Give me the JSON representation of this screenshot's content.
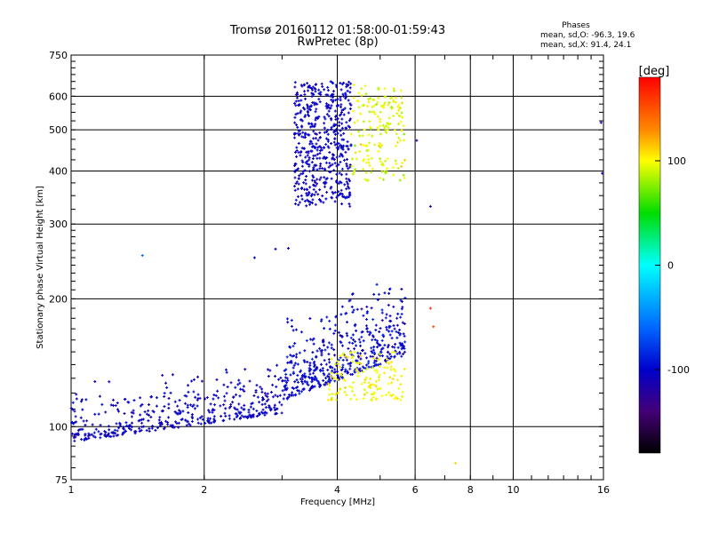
{
  "chart_data": {
    "type": "scatter",
    "title": "Tromsø 20160112 01:58:00-01:59:43",
    "subtitle": "RwPretec (8p)",
    "xlabel": "Frequency [MHz]",
    "ylabel": "Stationary phase Virtual Height [km]",
    "x_scale": "log",
    "y_scale": "log",
    "xlim": [
      1,
      16
    ],
    "ylim": [
      75,
      750
    ],
    "x_ticks": [
      1,
      2,
      4,
      6,
      8,
      10,
      16
    ],
    "y_ticks": [
      75,
      100,
      200,
      300,
      400,
      500,
      600,
      750
    ],
    "x_gridlines": [
      2,
      4,
      6,
      8,
      10
    ],
    "y_gridlines": [
      100,
      200,
      300,
      400,
      500,
      600
    ],
    "grid": true,
    "stats": {
      "heading": "Phases",
      "line1": "mean, sd,O: -96.3, 19.6",
      "line2": "mean, sd,X:  91.4, 24.1"
    },
    "colorbar": {
      "label": "[deg]",
      "range": [
        -180,
        180
      ],
      "ticks": [
        100,
        0,
        -100
      ],
      "colors": [
        "#ff0000",
        "#ff8800",
        "#ffff00",
        "#00dd00",
        "#00ffff",
        "#0066ff",
        "#0000cc",
        "#440077",
        "#000000"
      ]
    },
    "clusters": [
      {
        "name": "",
        "f_range": [
          1.0,
          3.0
        ],
        "h_range": [
          92,
          130
        ],
        "phase": -105,
        "phase_spread": 18,
        "count": 420,
        "shape": "rising"
      },
      {
        "name": "",
        "f_range": [
          3.0,
          5.7
        ],
        "h_range": [
          115,
          200
        ],
        "phase": -100,
        "phase_spread": 25,
        "count": 480,
        "shape": "rising"
      },
      {
        "name": "",
        "f_range": [
          3.8,
          5.7
        ],
        "h_range": [
          115,
          150
        ],
        "phase": 100,
        "phase_spread": 20,
        "count": 140,
        "shape": "flat"
      },
      {
        "name": "",
        "f_range": [
          3.2,
          4.3
        ],
        "h_range": [
          330,
          650
        ],
        "phase": -105,
        "phase_spread": 15,
        "count": 520,
        "shape": "flat"
      },
      {
        "name": "",
        "f_range": [
          4.3,
          5.7
        ],
        "h_range": [
          380,
          640
        ],
        "phase": 95,
        "phase_spread": 25,
        "count": 180,
        "shape": "flat"
      }
    ],
    "isolated_points": [
      {
        "f": 1.45,
        "h": 253,
        "phase": -60
      },
      {
        "f": 2.6,
        "h": 250,
        "phase": -100
      },
      {
        "f": 2.9,
        "h": 262,
        "phase": -100
      },
      {
        "f": 3.1,
        "h": 263,
        "phase": -110
      },
      {
        "f": 6.05,
        "h": 472,
        "phase": -120
      },
      {
        "f": 6.5,
        "h": 330,
        "phase": -110
      },
      {
        "f": 7.4,
        "h": 82,
        "phase": 110
      },
      {
        "f": 15.8,
        "h": 520,
        "phase": -110
      },
      {
        "f": 15.9,
        "h": 395,
        "phase": -110
      },
      {
        "f": 6.6,
        "h": 172,
        "phase": 150
      },
      {
        "f": 6.5,
        "h": 190,
        "phase": 160
      }
    ]
  }
}
